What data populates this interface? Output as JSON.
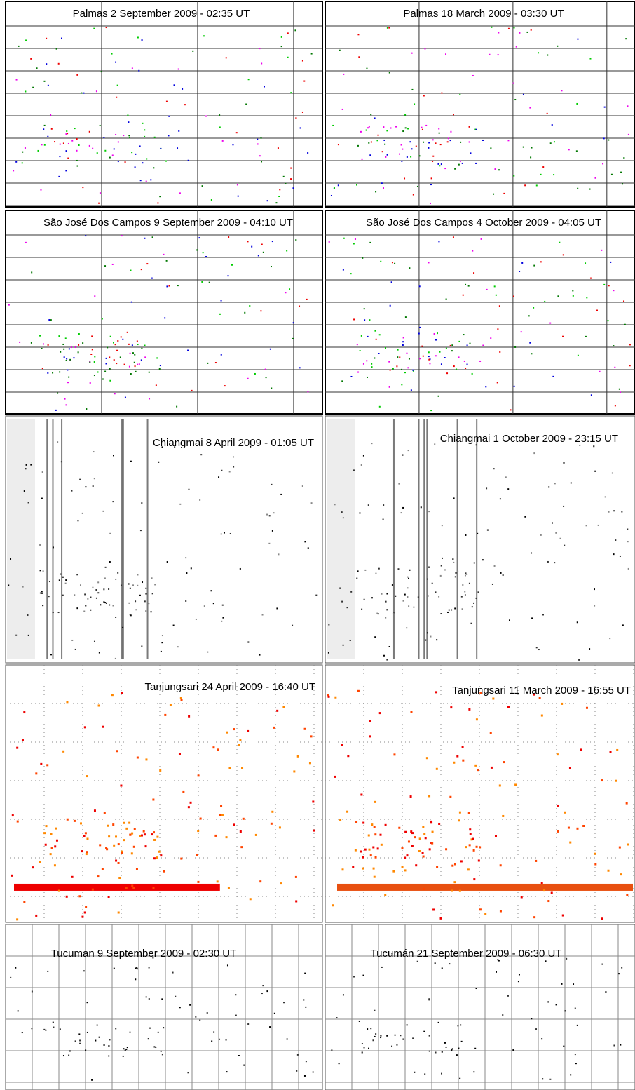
{
  "panels": [
    {
      "title": "Palmas 2 September 2009 - 02:35 UT"
    },
    {
      "title": "Palmas 18 March 2009 - 03:30 UT"
    },
    {
      "title": "São José Dos Campos 9 September 2009 - 04:10 UT"
    },
    {
      "title": "São José Dos Campos 4 October 2009 - 04:05 UT"
    },
    {
      "title": "Chiangmai 8 April 2009 - 01:05 UT"
    },
    {
      "title": "Chiangmai 1 October 2009 - 23:15 UT"
    },
    {
      "title": "Tanjungsari  24 April 2009 - 16:40 UT"
    },
    {
      "title": "Tanjungsari 11 March 2009 - 16:55 UT"
    },
    {
      "title": "Tucuman 9 September 2009 - 02:30 UT"
    },
    {
      "title": "Tucumán 21 September 2009 - 06:30 UT"
    }
  ]
}
